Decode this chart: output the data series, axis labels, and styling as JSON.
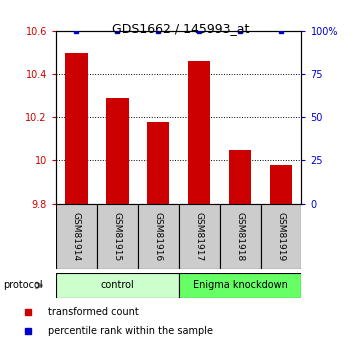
{
  "title": "GDS1662 / 145993_at",
  "samples": [
    "GSM81914",
    "GSM81915",
    "GSM81916",
    "GSM81917",
    "GSM81918",
    "GSM81919"
  ],
  "red_values": [
    10.5,
    10.29,
    10.18,
    10.46,
    10.05,
    9.98
  ],
  "ylim_left": [
    9.8,
    10.6
  ],
  "ylim_right": [
    0,
    100
  ],
  "yticks_left": [
    9.8,
    10.0,
    10.2,
    10.4,
    10.6
  ],
  "ytick_labels_left": [
    "9.8",
    "10",
    "10.2",
    "10.4",
    "10.6"
  ],
  "yticks_right": [
    0,
    25,
    50,
    75,
    100
  ],
  "ytick_labels_right": [
    "0",
    "25",
    "50",
    "75",
    "100%"
  ],
  "bar_color": "#cc0000",
  "dot_color": "#0000cc",
  "bar_width": 0.55,
  "baseline": 9.8,
  "group1_label": "control",
  "group2_label": "Enigma knockdown",
  "group1_color": "#ccffcc",
  "group2_color": "#66ff66",
  "sample_box_color": "#cccccc",
  "protocol_label": "protocol",
  "legend_red": "transformed count",
  "legend_blue": "percentile rank within the sample",
  "grid_lines": [
    10.0,
    10.2,
    10.4
  ],
  "blue_dot_percentile": 100,
  "figsize": [
    3.61,
    3.45
  ],
  "dpi": 100
}
